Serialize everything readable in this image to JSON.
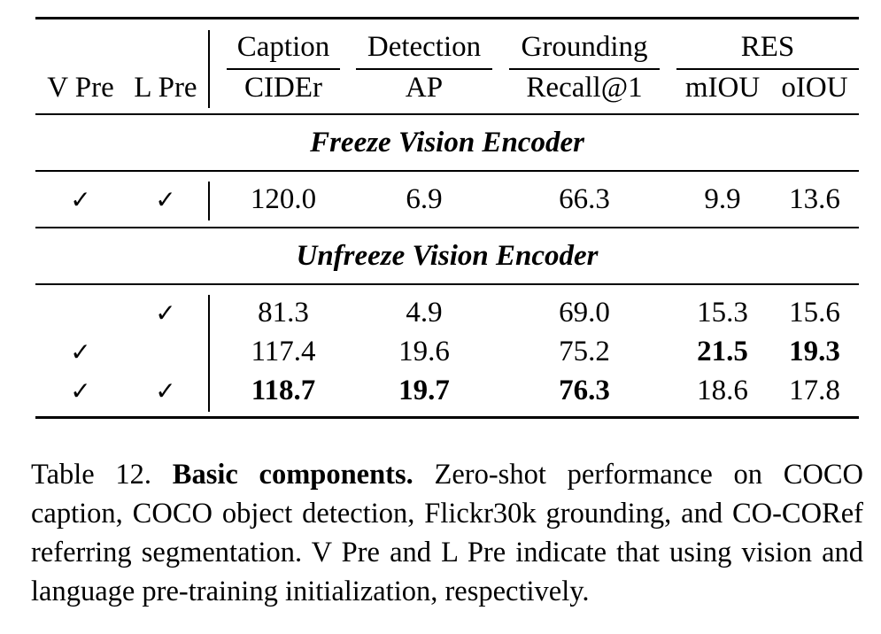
{
  "table": {
    "group_headers": {
      "caption": "Caption",
      "detection": "Detection",
      "grounding": "Grounding",
      "res": "RES"
    },
    "col_headers": {
      "v_pre": "V Pre",
      "l_pre": "L Pre",
      "cider": "CIDEr",
      "ap": "AP",
      "recall": "Recall@1",
      "miou": "mIOU",
      "oiou": "oIOU"
    },
    "check_mark": "✓",
    "sections": {
      "freeze": "Freeze Vision Encoder",
      "unfreeze": "Unfreeze Vision Encoder"
    },
    "rows": [
      {
        "v_pre": "✓",
        "l_pre": "✓",
        "cider": "120.0",
        "ap": "6.9",
        "recall": "66.3",
        "miou": "9.9",
        "oiou": "13.6"
      },
      {
        "v_pre": "",
        "l_pre": "✓",
        "cider": "81.3",
        "ap": "4.9",
        "recall": "69.0",
        "miou": "15.3",
        "oiou": "15.6"
      },
      {
        "v_pre": "✓",
        "l_pre": "",
        "cider": "117.4",
        "ap": "19.6",
        "recall": "75.2",
        "miou": "21.5",
        "oiou": "19.3"
      },
      {
        "v_pre": "✓",
        "l_pre": "✓",
        "cider": "118.7",
        "ap": "19.7",
        "recall": "76.3",
        "miou": "18.6",
        "oiou": "17.8"
      }
    ]
  },
  "caption": {
    "label": "Table 12.",
    "title": "Basic components.",
    "body": "Zero-shot performance on COCO caption, COCO object detection, Flickr30k grounding, and CO-CORef referring segmentation. V Pre and L Pre indicate that using vision and language pre-training initialization, respectively."
  }
}
